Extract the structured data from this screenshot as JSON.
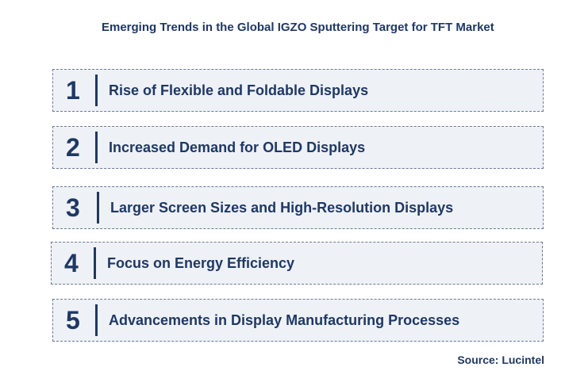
{
  "title": "Emerging Trends in the Global IGZO Sputtering Target for TFT Market",
  "trends": [
    {
      "number": "1",
      "label": "Rise of Flexible and Foldable Displays"
    },
    {
      "number": "2",
      "label": "Increased Demand for OLED Displays"
    },
    {
      "number": "3",
      "label": "Larger Screen Sizes and High-Resolution Displays"
    },
    {
      "number": "4",
      "label": "Focus on Energy Efficiency"
    },
    {
      "number": "5",
      "label": "Advancements in Display Manufacturing Processes"
    }
  ],
  "source": "Source: Lucintel",
  "colors": {
    "text": "#1F3864",
    "row_background": "#EEF1F6",
    "row_border": "#6b7b93"
  }
}
